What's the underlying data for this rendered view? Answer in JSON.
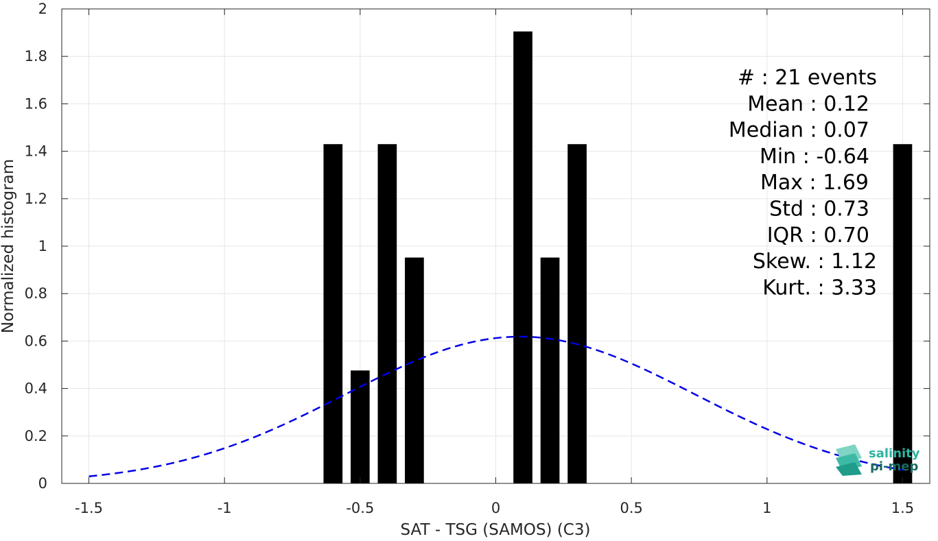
{
  "chart_data": {
    "type": "bar",
    "xlabel": "SAT - TSG (SAMOS) (C3)",
    "ylabel": "Normalized histogram",
    "xlim": [
      -1.6,
      1.6
    ],
    "ylim": [
      0,
      2
    ],
    "xticks": [
      -1.5,
      -1,
      -0.5,
      0,
      0.5,
      1,
      1.5
    ],
    "xtick_labels": [
      "-1.5",
      "-1",
      "-0.5",
      "0",
      "0.5",
      "1",
      "1.5"
    ],
    "yticks": [
      0,
      0.2,
      0.4,
      0.6,
      0.8,
      1,
      1.2,
      1.4,
      1.6,
      1.8,
      2
    ],
    "ytick_labels": [
      "0",
      "0.2",
      "0.4",
      "0.6",
      "0.8",
      "1",
      "1.2",
      "1.4",
      "1.6",
      "1.8",
      "2"
    ],
    "grid": true,
    "bar_width": 0.07,
    "bar_color": "#000000",
    "bars": [
      {
        "x": -0.6,
        "value": 1.43
      },
      {
        "x": -0.5,
        "value": 0.476
      },
      {
        "x": -0.4,
        "value": 1.43
      },
      {
        "x": -0.3,
        "value": 0.952
      },
      {
        "x": 0.1,
        "value": 1.905
      },
      {
        "x": 0.2,
        "value": 0.952
      },
      {
        "x": 0.3,
        "value": 1.43
      },
      {
        "x": 1.5,
        "value": 1.43
      }
    ],
    "fit_curve": {
      "type": "gaussian",
      "mean": 0.09,
      "std": 0.645,
      "x_range": [
        -1.5,
        1.5
      ],
      "color": "#0000e6",
      "style": "dashed"
    },
    "stats_placement": "top-right",
    "stats": [
      "#  : 21 events",
      "Mean : 0.12",
      "Median : 0.07",
      "Min : -0.64",
      "Max : 1.69",
      "Std : 0.73",
      "IQR : 0.70",
      "Skew. : 1.12",
      "Kurt. : 3.33"
    ]
  },
  "logo": {
    "name": "salinity-pimep-logo",
    "line1": "salinity",
    "line2": "pi-mep",
    "color1": "#2bb5a0",
    "color2": "#1a6b64"
  }
}
